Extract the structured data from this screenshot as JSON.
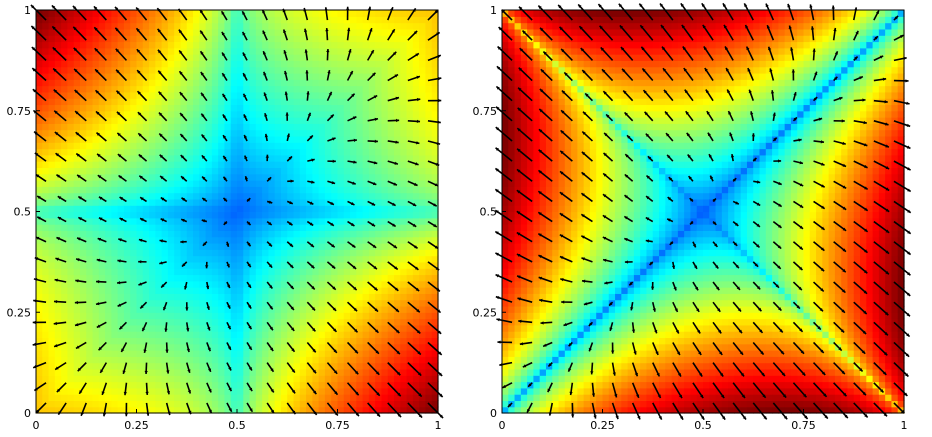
{
  "chart_data": [
    {
      "type": "heatmap",
      "subtype": "quiver",
      "colormap": "jet",
      "title": "",
      "xlabel": "",
      "ylabel": "",
      "xlim": [
        0,
        1
      ],
      "ylim": [
        0,
        1
      ],
      "xticks": [
        0,
        0.25,
        0.5,
        0.75,
        1
      ],
      "yticks": [
        0,
        0.25,
        0.5,
        0.75,
        1
      ],
      "xtick_labels": [
        "0",
        "0.25",
        "0.5",
        "0.75",
        "1"
      ],
      "ytick_labels": [
        "0",
        "0.25",
        "0.5",
        "0.75",
        "1"
      ],
      "field": {
        "center": [
          0.5,
          0.5
        ],
        "orientation": "axis-aligned",
        "max_magnitude_at": [
          "(0,1)",
          "(1,0)"
        ],
        "min_magnitude_at": "(0.5,0.5)"
      },
      "quiver_grid": [
        20,
        20
      ],
      "grid": false
    },
    {
      "type": "heatmap",
      "subtype": "quiver",
      "colormap": "jet",
      "title": "",
      "xlabel": "",
      "ylabel": "",
      "xlim": [
        0,
        1
      ],
      "ylim": [
        0,
        1
      ],
      "xticks": [
        0,
        0.25,
        0.5,
        0.75,
        1
      ],
      "yticks": [
        0,
        0.25,
        0.5,
        0.75,
        1
      ],
      "xtick_labels": [
        "0",
        "0.25",
        "0.5",
        "0.75",
        "1"
      ],
      "ytick_labels": [
        "0",
        "0.25",
        "0.5",
        "0.75",
        "1"
      ],
      "field": {
        "center": [
          0.5,
          0.5
        ],
        "orientation": "diagonal",
        "max_magnitude_at": [
          "(0,1)",
          "(1,0)"
        ],
        "min_magnitude_at": "(0.5,0.5)"
      },
      "quiver_grid": [
        20,
        20
      ],
      "grid": false
    }
  ],
  "colors": {
    "frame": "#000000",
    "arrow": "#000000",
    "background": "#ffffff"
  }
}
